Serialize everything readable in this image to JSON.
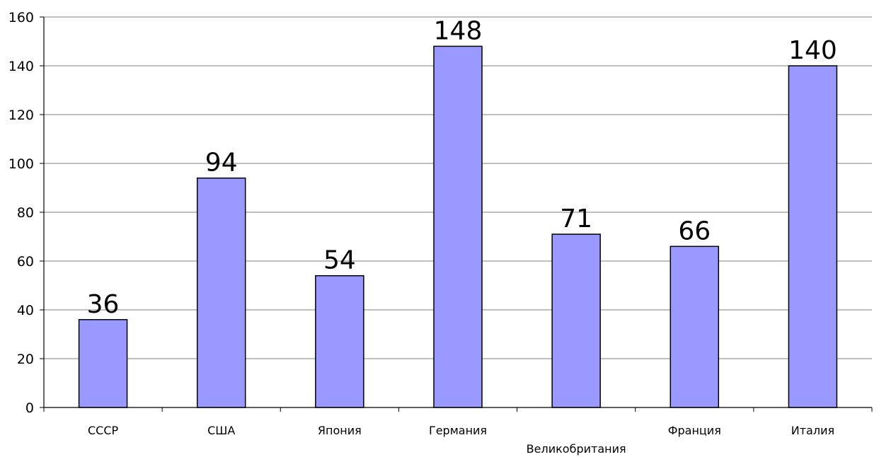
{
  "chart_data": {
    "type": "bar",
    "categories": [
      "СССР",
      "США",
      "Япония",
      "Германия",
      "Великобритания",
      "Франция",
      "Италия"
    ],
    "values": [
      36,
      94,
      54,
      148,
      71,
      66,
      140
    ],
    "ylim": [
      0,
      160
    ],
    "yticks": [
      0,
      20,
      40,
      60,
      80,
      100,
      120,
      140,
      160
    ],
    "grid": true,
    "legend": "none",
    "data_labels": true,
    "colors": {
      "bar_fill": "#9999ff",
      "bar_stroke": "#000000",
      "grid": "#808080",
      "axis": "#000000"
    }
  }
}
